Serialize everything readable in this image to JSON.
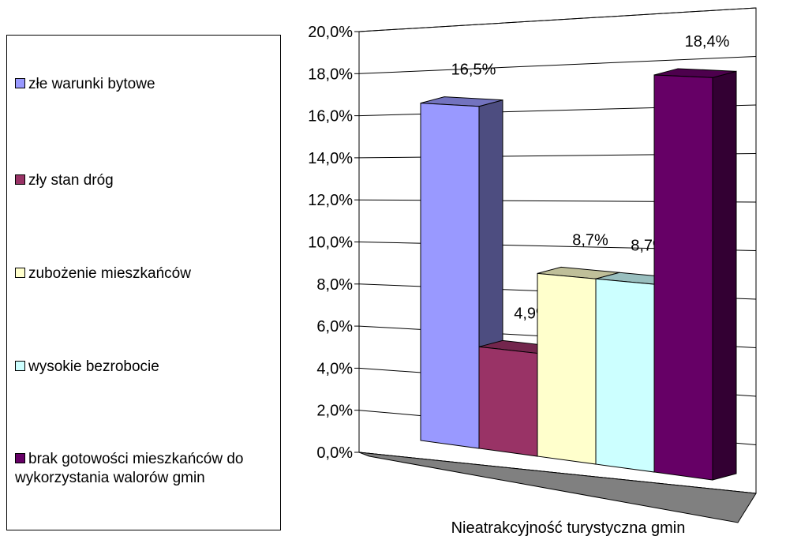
{
  "chart_data": {
    "type": "bar3d",
    "categories": [
      "Nieatrakcyjność turystyczna gmin"
    ],
    "series": [
      {
        "name": "złe warunki bytowe",
        "color": "#9999ff",
        "values": [
          16.5
        ],
        "value_labels": [
          "16,5%"
        ]
      },
      {
        "name": "zły  stan dróg",
        "color": "#993366",
        "values": [
          4.9
        ],
        "value_labels": [
          "4,9%"
        ]
      },
      {
        "name": "zubożenie mieszkańców",
        "color": "#ffffcc",
        "values": [
          8.7
        ],
        "value_labels": [
          "8,7%"
        ]
      },
      {
        "name": "wysokie bezrobocie",
        "color": "#ccffff",
        "values": [
          8.7
        ],
        "value_labels": [
          "8,7%"
        ]
      },
      {
        "name": "brak gotowości mieszkańców do wykorzystania walorów gmin",
        "color": "#660066",
        "values": [
          18.4
        ],
        "value_labels": [
          "18,4%"
        ]
      }
    ],
    "ylim": [
      0,
      20
    ],
    "yticks": [
      {
        "value": 0,
        "label": "0,0%"
      },
      {
        "value": 2,
        "label": "2,0%"
      },
      {
        "value": 4,
        "label": "4,0%"
      },
      {
        "value": 6,
        "label": "6,0%"
      },
      {
        "value": 8,
        "label": "8,0%"
      },
      {
        "value": 10,
        "label": "10,0%"
      },
      {
        "value": 12,
        "label": "12,0%"
      },
      {
        "value": 14,
        "label": "14,0%"
      },
      {
        "value": 16,
        "label": "16,0%"
      },
      {
        "value": 18,
        "label": "18,0%"
      },
      {
        "value": 20,
        "label": "20,0%"
      }
    ],
    "grid": true,
    "legend": "left"
  }
}
